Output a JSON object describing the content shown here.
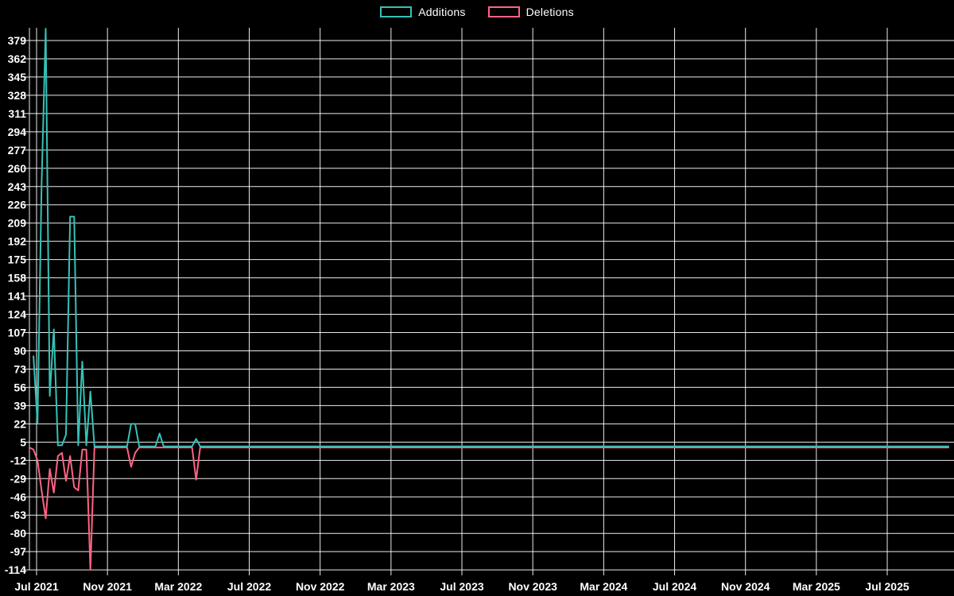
{
  "chart_data": {
    "type": "line",
    "title": "",
    "background_color": "#000000",
    "grid": true,
    "grid_color": "#ffffff",
    "text_color": "#ffffff",
    "legend_position": "top",
    "legend_entries": [
      "Additions",
      "Deletions"
    ],
    "x_axis": {
      "tick_labels": [
        "Jul 2021",
        "Nov 2021",
        "Mar 2022",
        "Jul 2022",
        "Nov 2022",
        "Mar 2023",
        "Jul 2023",
        "Nov 2023",
        "Mar 2024",
        "Jul 2024",
        "Nov 2024",
        "Mar 2025",
        "Jul 2025"
      ],
      "tick_interval_months": 4,
      "unit": "weeks since 2021-06-20"
    },
    "y_axis": {
      "tick_labels": [
        379,
        362,
        345,
        328,
        311,
        294,
        277,
        260,
        243,
        226,
        209,
        192,
        175,
        158,
        141,
        124,
        107,
        90,
        73,
        56,
        39,
        22,
        5,
        -12,
        -29,
        -46,
        -63,
        -80,
        -97,
        -114
      ],
      "tick_step": 17,
      "min": -114,
      "max": 392
    },
    "series": [
      {
        "name": "Additions",
        "color": "#35c2b7",
        "points": [
          [
            1,
            85
          ],
          [
            2,
            22
          ],
          [
            3,
            245
          ],
          [
            4,
            390
          ],
          [
            5,
            48
          ],
          [
            6,
            110
          ],
          [
            7,
            2
          ],
          [
            8,
            2
          ],
          [
            9,
            12
          ],
          [
            10,
            215
          ],
          [
            11,
            215
          ],
          [
            12,
            2
          ],
          [
            13,
            80
          ],
          [
            14,
            2
          ],
          [
            15,
            52
          ],
          [
            16,
            1
          ],
          [
            24,
            1
          ],
          [
            25,
            22
          ],
          [
            26,
            22
          ],
          [
            27,
            1
          ],
          [
            31,
            1
          ],
          [
            32,
            13
          ],
          [
            33,
            1
          ],
          [
            40,
            1
          ],
          [
            41,
            8
          ],
          [
            42,
            1
          ],
          [
            226,
            1
          ]
        ]
      },
      {
        "name": "Deletions",
        "color": "#ff6384",
        "points": [
          [
            0,
            0
          ],
          [
            1,
            -2
          ],
          [
            2,
            -12
          ],
          [
            3,
            -40
          ],
          [
            4,
            -66
          ],
          [
            5,
            -20
          ],
          [
            6,
            -42
          ],
          [
            7,
            -8
          ],
          [
            8,
            -5
          ],
          [
            9,
            -31
          ],
          [
            10,
            -8
          ],
          [
            11,
            -37
          ],
          [
            12,
            -40
          ],
          [
            13,
            -2
          ],
          [
            14,
            -2
          ],
          [
            15,
            -114
          ],
          [
            16,
            0
          ],
          [
            24,
            0
          ],
          [
            25,
            -18
          ],
          [
            26,
            -5
          ],
          [
            27,
            0
          ],
          [
            31,
            0
          ],
          [
            32,
            0
          ],
          [
            33,
            0
          ],
          [
            40,
            0
          ],
          [
            41,
            -30
          ],
          [
            42,
            0
          ],
          [
            226,
            0
          ]
        ]
      }
    ]
  },
  "legend": {
    "additions_label": "Additions",
    "deletions_label": "Deletions",
    "additions_color": "#35c2b7",
    "deletions_color": "#ff6384"
  }
}
